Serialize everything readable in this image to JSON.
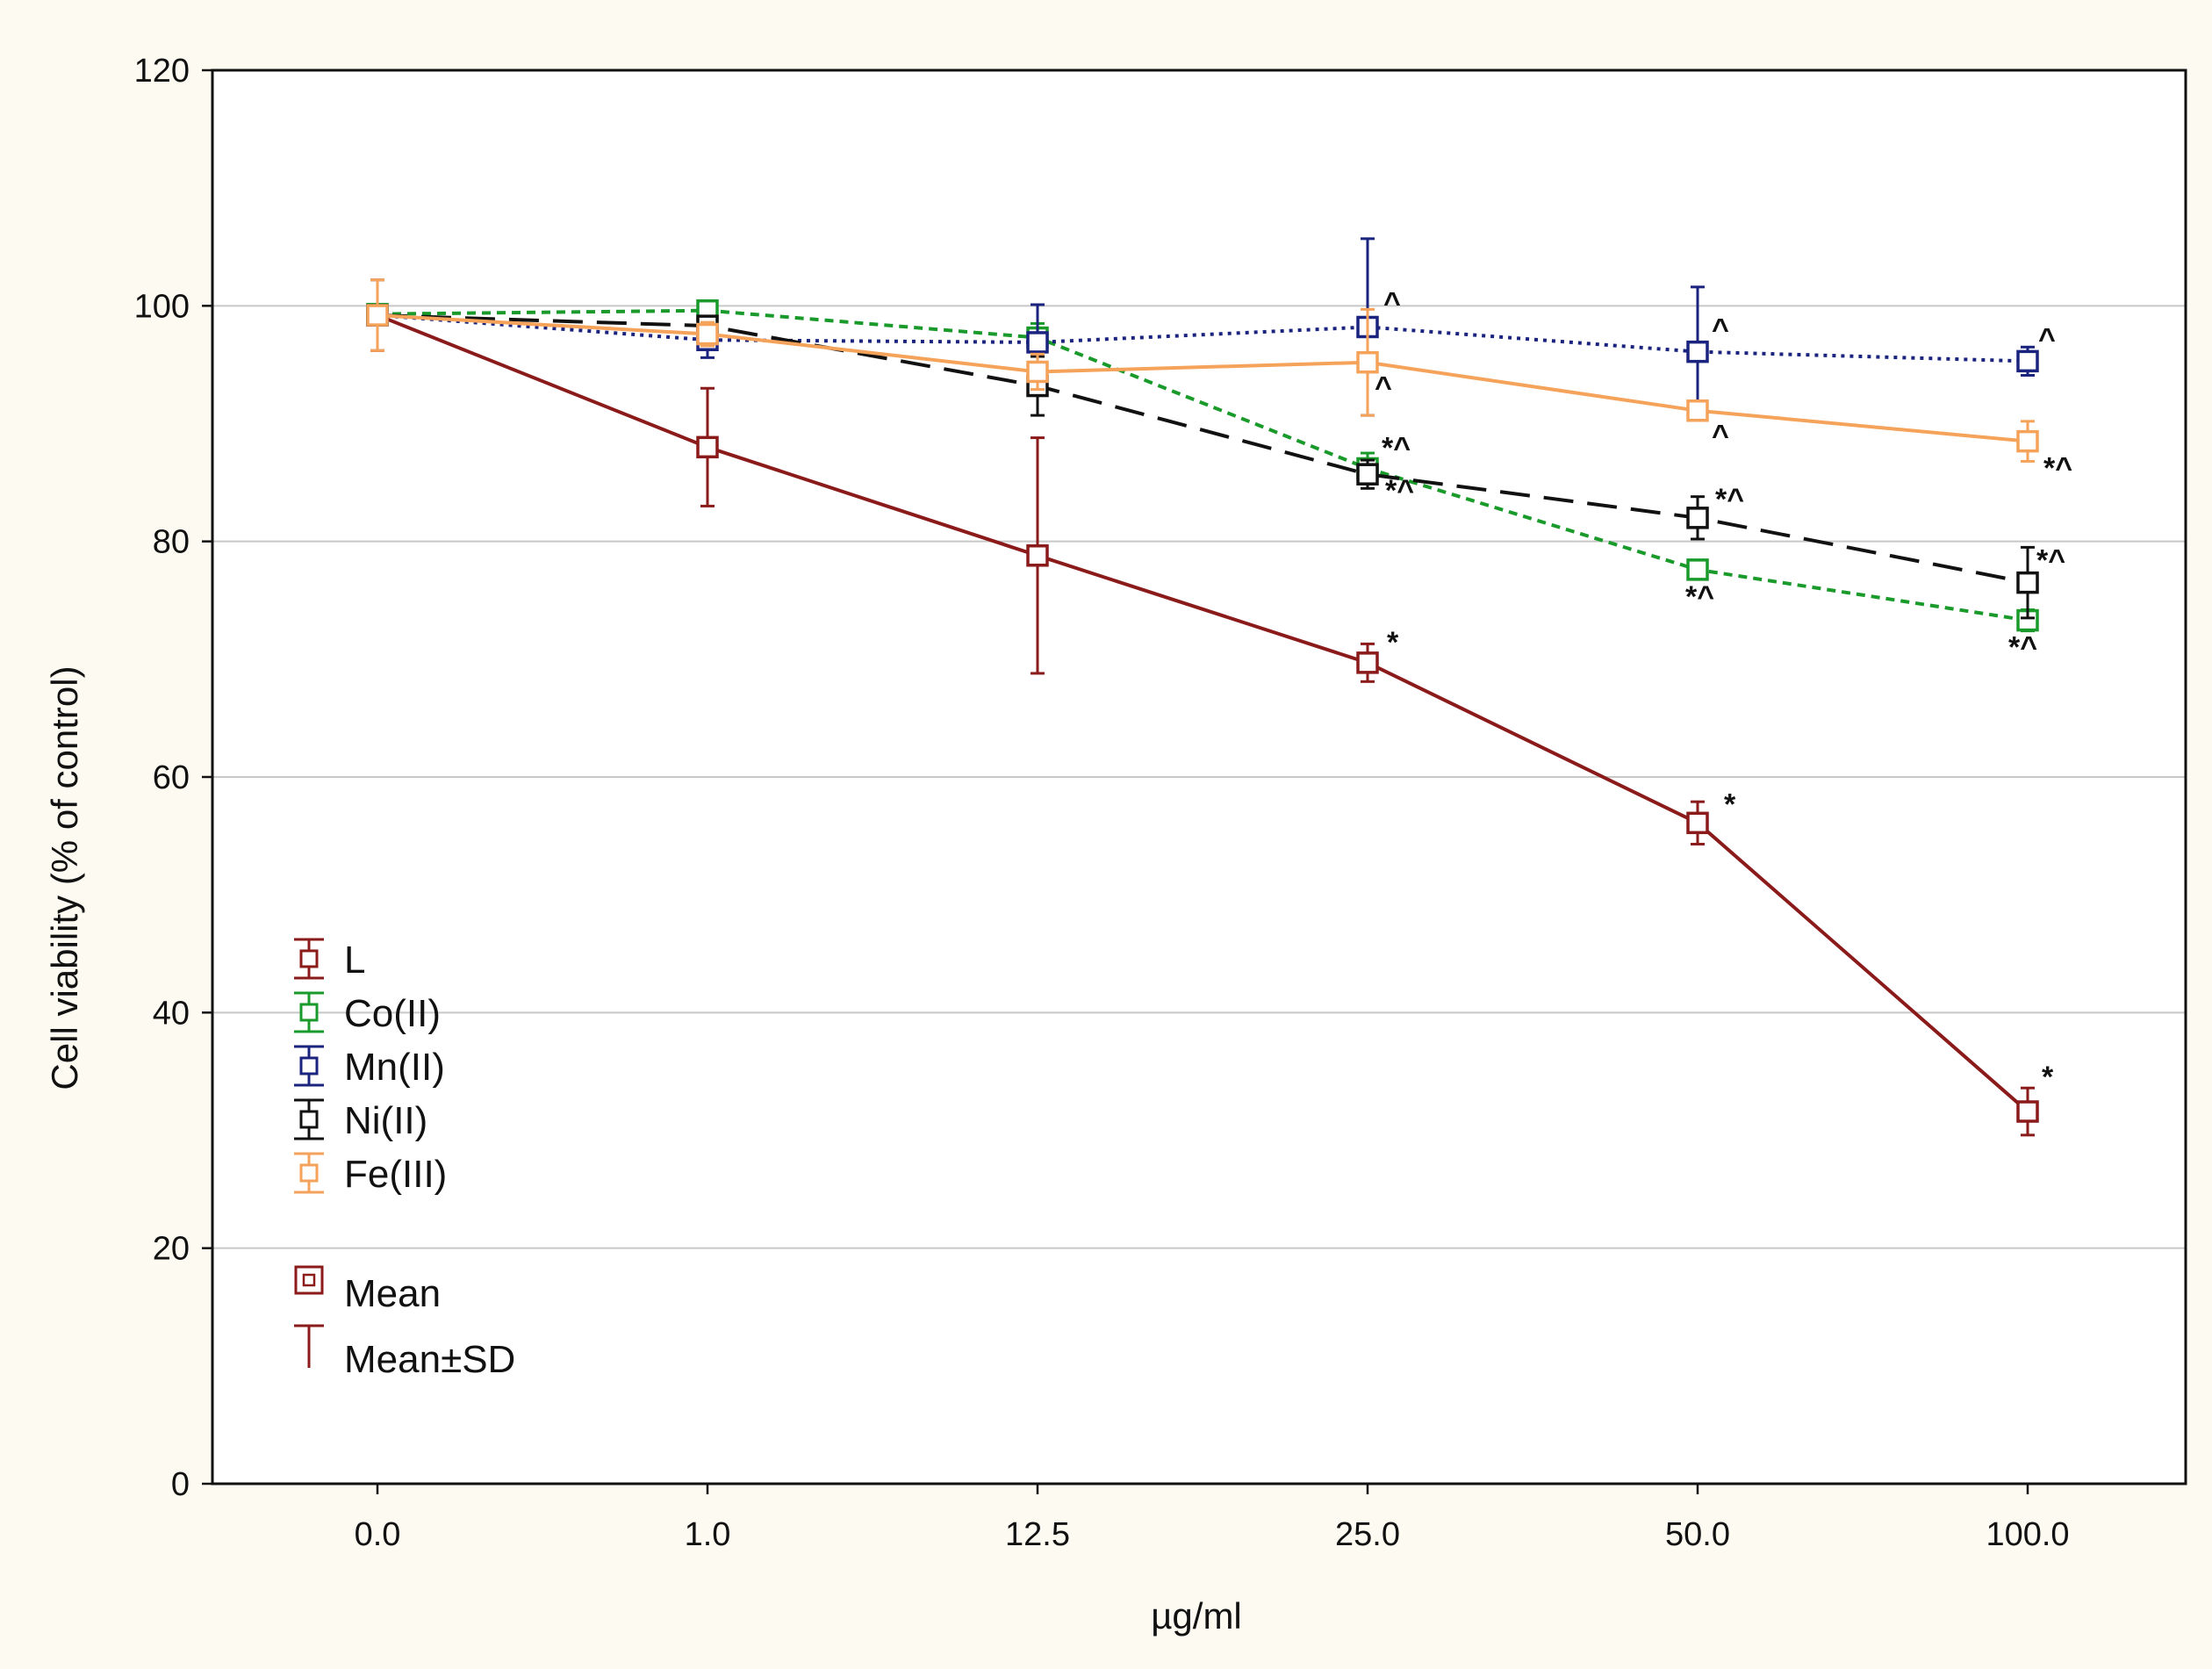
{
  "chart_data": {
    "type": "line",
    "x_categories": [
      "0.0",
      "1.0",
      "12.5",
      "25.0",
      "50.0",
      "100.0"
    ],
    "xlabel": "µg/ml",
    "ylabel": "Cell viability (% of control)",
    "ylim": [
      0,
      120
    ],
    "yticks": [
      "0",
      "20",
      "40",
      "60",
      "80",
      "100",
      "120"
    ],
    "grid": "horizontal",
    "legend_position": "left-middle",
    "series": [
      {
        "name": "L",
        "color": "#8b1a1a",
        "dash": "solid",
        "values": [
          99.2,
          88.0,
          78.8,
          69.7,
          56.1,
          31.6
        ],
        "sd": [
          3.0,
          5.0,
          10.0,
          1.6,
          1.8,
          2.0
        ],
        "annotations": [
          "",
          "",
          "",
          "*",
          "*",
          "*"
        ]
      },
      {
        "name": "Co(II)",
        "color": "#1a9a2a",
        "dash": "short",
        "values": [
          99.3,
          99.6,
          97.3,
          86.2,
          77.6,
          73.3
        ],
        "sd": [
          0.5,
          0.5,
          1.2,
          1.3,
          0.8,
          0.9
        ],
        "annotations": [
          "",
          "",
          "",
          "*^",
          "*^",
          "*^"
        ]
      },
      {
        "name": "Mn(II)",
        "color": "#1a237e",
        "dash": "dot",
        "values": [
          99.2,
          97.1,
          96.9,
          98.2,
          96.1,
          95.3
        ],
        "sd": [
          0.5,
          1.5,
          3.2,
          7.5,
          5.5,
          1.2
        ],
        "annotations": [
          "",
          "",
          "",
          "^",
          "^",
          "^"
        ]
      },
      {
        "name": "Ni(II)",
        "color": "#111111",
        "dash": "long",
        "values": [
          99.2,
          98.3,
          93.2,
          85.7,
          82.0,
          76.5
        ],
        "sd": [
          0.5,
          0.8,
          2.5,
          1.2,
          1.8,
          3.0
        ],
        "annotations": [
          "",
          "",
          "",
          "*^",
          "*^",
          "*^"
        ]
      },
      {
        "name": "Fe(III)",
        "color": "#f5a25a",
        "dash": "solid",
        "values": [
          99.2,
          97.6,
          94.4,
          95.2,
          91.1,
          88.5
        ],
        "sd": [
          3.0,
          1.0,
          1.5,
          4.5,
          0.8,
          1.7
        ],
        "annotations": [
          "",
          "",
          "",
          "^",
          "^",
          "*^"
        ]
      }
    ],
    "legend_extras": [
      "Mean",
      "Mean±SD"
    ]
  }
}
